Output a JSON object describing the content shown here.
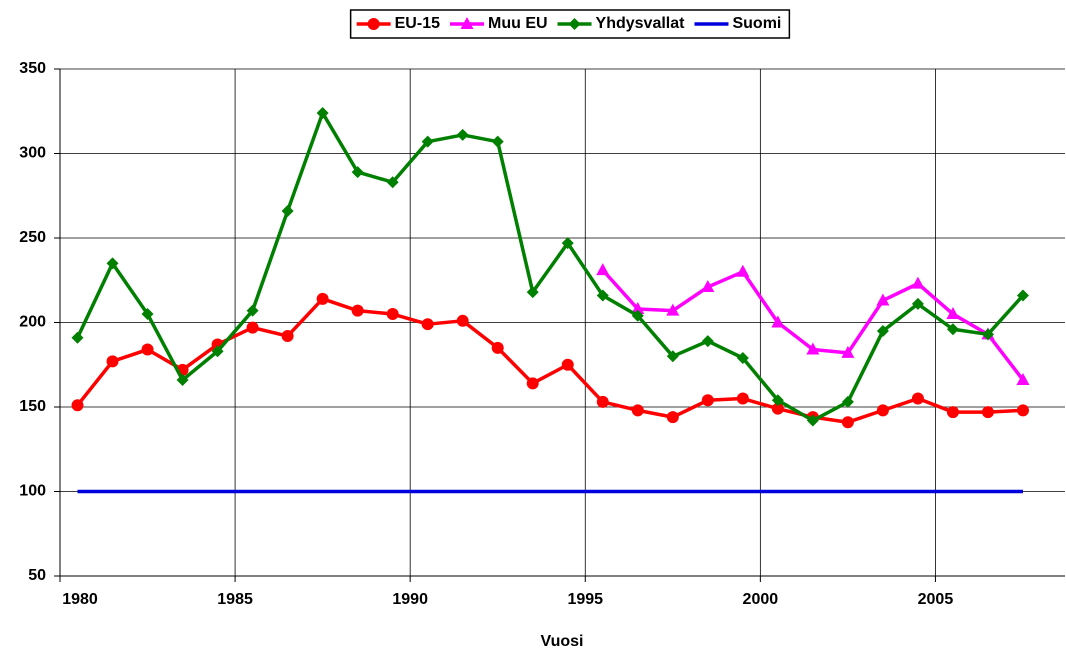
{
  "chart_data": {
    "type": "line",
    "x_label": "Vuosi",
    "x": [
      1980.5,
      1981.5,
      1982.5,
      1983.5,
      1984.5,
      1985.5,
      1986.5,
      1987.5,
      1988.5,
      1989.5,
      1990.5,
      1991.5,
      1992.5,
      1993.5,
      1994.5,
      1995.5,
      1996.5,
      1997.5,
      1998.5,
      1999.5,
      2000.5,
      2001.5,
      2002.5,
      2003.5,
      2004.5,
      2005.5,
      2006.5,
      2007.5
    ],
    "series": [
      {
        "name": "EU-15",
        "color": "#ff0000",
        "marker": "circle",
        "values": [
          151,
          177,
          184,
          172,
          187,
          197,
          192,
          214,
          207,
          205,
          199,
          201,
          185,
          164,
          175,
          153,
          148,
          144,
          154,
          155,
          149,
          144,
          141,
          148,
          155,
          147,
          147,
          148
        ]
      },
      {
        "name": "Muu EU",
        "color": "#ff00ff",
        "marker": "triangle",
        "values": [
          null,
          null,
          null,
          null,
          null,
          null,
          null,
          null,
          null,
          null,
          null,
          null,
          null,
          null,
          null,
          231,
          208,
          207,
          221,
          230,
          200,
          184,
          182,
          213,
          223,
          205,
          193,
          166
        ]
      },
      {
        "name": "Yhdysvallat",
        "color": "#008000",
        "marker": "diamond",
        "values": [
          191,
          235,
          205,
          166,
          183,
          207,
          266,
          324,
          289,
          283,
          307,
          311,
          307,
          218,
          247,
          216,
          204,
          180,
          189,
          179,
          154,
          142,
          153,
          195,
          211,
          196,
          193,
          216
        ]
      },
      {
        "name": "Suomi",
        "color": "#0000dd",
        "marker": "none",
        "values": [
          100,
          100,
          100,
          100,
          100,
          100,
          100,
          100,
          100,
          100,
          100,
          100,
          100,
          100,
          100,
          100,
          100,
          100,
          100,
          100,
          100,
          100,
          100,
          100,
          100,
          100,
          100,
          100
        ]
      }
    ],
    "xlim": [
      1980,
      2008.7
    ],
    "xticks": [
      1980,
      1985,
      1990,
      1995,
      2000,
      2005
    ],
    "ylim": [
      50,
      350
    ],
    "yticks": [
      50,
      100,
      150,
      200,
      250,
      300,
      350
    ],
    "grid": true,
    "legend": "top"
  }
}
